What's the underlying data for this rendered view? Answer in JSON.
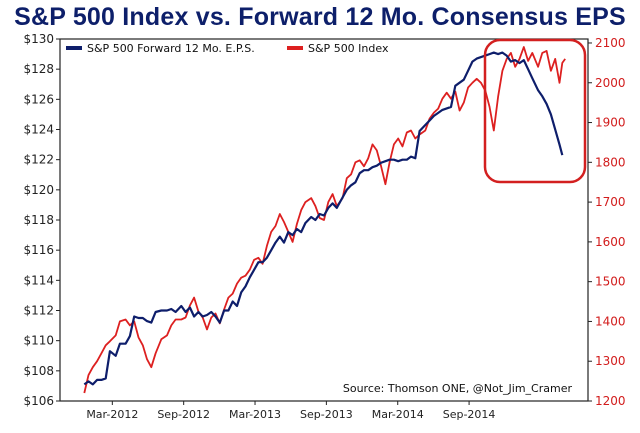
{
  "title": "S&P 500 Index vs. Forward 12 Mo. Consensus EPS",
  "chart_data": {
    "type": "line",
    "title": "S&P 500 Index vs. Forward 12 Mo. Consensus EPS",
    "source": "Source: Thomson ONE, @Not_Jim_Cramer",
    "grid": false,
    "legend_position": "top-left",
    "x_ticks": [
      "Mar-2012",
      "Sep-2012",
      "Mar-2013",
      "Sep-2013",
      "Mar-2014",
      "Sep-2014"
    ],
    "x_range": [
      2011.8,
      2015.5
    ],
    "y_left": {
      "ticks": [
        "$106",
        "$108",
        "$110",
        "$112",
        "$114",
        "$116",
        "$118",
        "$120",
        "$122",
        "$124",
        "$126",
        "$128",
        "$130"
      ],
      "range": [
        106,
        130
      ]
    },
    "y_right": {
      "ticks": [
        "1200",
        "1300",
        "1400",
        "1500",
        "1600",
        "1700",
        "1800",
        "1900",
        "2000",
        "2100"
      ],
      "range": [
        1200,
        2110
      ]
    },
    "series": [
      {
        "name": "S&P 500 Forward 12 Mo. E.P.S.",
        "axis": "left",
        "color": "#0e1e6b",
        "points": [
          [
            2011.97,
            107.1
          ],
          [
            2012.0,
            107.3
          ],
          [
            2012.03,
            107.1
          ],
          [
            2012.06,
            107.4
          ],
          [
            2012.09,
            107.4
          ],
          [
            2012.12,
            107.5
          ],
          [
            2012.15,
            109.3
          ],
          [
            2012.19,
            109.0
          ],
          [
            2012.22,
            109.8
          ],
          [
            2012.26,
            109.8
          ],
          [
            2012.29,
            110.3
          ],
          [
            2012.32,
            111.6
          ],
          [
            2012.35,
            111.5
          ],
          [
            2012.38,
            111.5
          ],
          [
            2012.41,
            111.3
          ],
          [
            2012.44,
            111.2
          ],
          [
            2012.47,
            111.9
          ],
          [
            2012.51,
            112.0
          ],
          [
            2012.55,
            112.0
          ],
          [
            2012.58,
            112.1
          ],
          [
            2012.61,
            111.9
          ],
          [
            2012.65,
            112.3
          ],
          [
            2012.68,
            111.9
          ],
          [
            2012.71,
            112.2
          ],
          [
            2012.74,
            111.6
          ],
          [
            2012.77,
            111.9
          ],
          [
            2012.8,
            111.6
          ],
          [
            2012.83,
            111.7
          ],
          [
            2012.86,
            111.9
          ],
          [
            2012.89,
            111.6
          ],
          [
            2012.92,
            111.2
          ],
          [
            2012.95,
            112.0
          ],
          [
            2012.98,
            112.0
          ],
          [
            2013.01,
            112.6
          ],
          [
            2013.04,
            112.3
          ],
          [
            2013.07,
            113.2
          ],
          [
            2013.1,
            113.6
          ],
          [
            2013.13,
            114.2
          ],
          [
            2013.16,
            114.7
          ],
          [
            2013.19,
            115.2
          ],
          [
            2013.22,
            115.2
          ],
          [
            2013.25,
            115.5
          ],
          [
            2013.28,
            116.0
          ],
          [
            2013.31,
            116.5
          ],
          [
            2013.34,
            116.9
          ],
          [
            2013.37,
            116.5
          ],
          [
            2013.4,
            117.2
          ],
          [
            2013.43,
            117.0
          ],
          [
            2013.46,
            117.4
          ],
          [
            2013.49,
            117.2
          ],
          [
            2013.52,
            117.8
          ],
          [
            2013.56,
            118.2
          ],
          [
            2013.59,
            118.0
          ],
          [
            2013.62,
            118.4
          ],
          [
            2013.65,
            118.3
          ],
          [
            2013.68,
            118.8
          ],
          [
            2013.71,
            119.1
          ],
          [
            2013.74,
            118.8
          ],
          [
            2013.78,
            119.5
          ],
          [
            2013.81,
            120.0
          ],
          [
            2013.84,
            120.3
          ],
          [
            2013.87,
            120.5
          ],
          [
            2013.9,
            121.1
          ],
          [
            2013.93,
            121.3
          ],
          [
            2013.96,
            121.3
          ],
          [
            2013.99,
            121.5
          ],
          [
            2014.02,
            121.6
          ],
          [
            2014.05,
            121.8
          ],
          [
            2014.08,
            121.9
          ],
          [
            2014.11,
            122.0
          ],
          [
            2014.14,
            122.0
          ],
          [
            2014.17,
            121.9
          ],
          [
            2014.2,
            122.0
          ],
          [
            2014.23,
            122.0
          ],
          [
            2014.26,
            122.2
          ],
          [
            2014.29,
            122.1
          ],
          [
            2014.32,
            123.9
          ],
          [
            2014.36,
            124.3
          ],
          [
            2014.39,
            124.6
          ],
          [
            2014.42,
            124.9
          ],
          [
            2014.45,
            125.1
          ],
          [
            2014.48,
            125.3
          ],
          [
            2014.51,
            125.4
          ],
          [
            2014.54,
            125.5
          ],
          [
            2014.57,
            126.9
          ],
          [
            2014.6,
            127.1
          ],
          [
            2014.63,
            127.3
          ],
          [
            2014.66,
            127.9
          ],
          [
            2014.69,
            128.5
          ],
          [
            2014.72,
            128.7
          ],
          [
            2014.75,
            128.8
          ],
          [
            2014.78,
            128.9
          ],
          [
            2014.81,
            129.0
          ],
          [
            2014.84,
            129.1
          ],
          [
            2014.87,
            129.0
          ],
          [
            2014.9,
            129.1
          ],
          [
            2014.93,
            128.9
          ],
          [
            2014.96,
            128.5
          ],
          [
            2014.99,
            128.6
          ],
          [
            2015.02,
            128.4
          ],
          [
            2015.05,
            128.6
          ],
          [
            2015.08,
            128.0
          ],
          [
            2015.11,
            127.4
          ],
          [
            2015.15,
            126.6
          ],
          [
            2015.18,
            126.2
          ],
          [
            2015.21,
            125.7
          ],
          [
            2015.24,
            125.0
          ],
          [
            2015.27,
            124.0
          ],
          [
            2015.3,
            123.0
          ],
          [
            2015.32,
            122.3
          ]
        ]
      },
      {
        "name": "S&P 500 Index",
        "axis": "right",
        "color": "#dd2020",
        "points": [
          [
            2011.97,
            1220
          ],
          [
            2012.0,
            1265
          ],
          [
            2012.03,
            1285
          ],
          [
            2012.06,
            1300
          ],
          [
            2012.09,
            1320
          ],
          [
            2012.12,
            1340
          ],
          [
            2012.15,
            1350
          ],
          [
            2012.19,
            1365
          ],
          [
            2012.22,
            1400
          ],
          [
            2012.26,
            1405
          ],
          [
            2012.29,
            1390
          ],
          [
            2012.32,
            1400
          ],
          [
            2012.35,
            1360
          ],
          [
            2012.38,
            1340
          ],
          [
            2012.41,
            1305
          ],
          [
            2012.44,
            1285
          ],
          [
            2012.47,
            1320
          ],
          [
            2012.51,
            1355
          ],
          [
            2012.55,
            1365
          ],
          [
            2012.58,
            1390
          ],
          [
            2012.61,
            1405
          ],
          [
            2012.65,
            1405
          ],
          [
            2012.68,
            1410
          ],
          [
            2012.71,
            1440
          ],
          [
            2012.74,
            1460
          ],
          [
            2012.77,
            1425
          ],
          [
            2012.8,
            1410
          ],
          [
            2012.83,
            1380
          ],
          [
            2012.86,
            1410
          ],
          [
            2012.89,
            1420
          ],
          [
            2012.92,
            1395
          ],
          [
            2012.95,
            1430
          ],
          [
            2012.98,
            1460
          ],
          [
            2013.01,
            1470
          ],
          [
            2013.04,
            1495
          ],
          [
            2013.07,
            1510
          ],
          [
            2013.1,
            1515
          ],
          [
            2013.13,
            1530
          ],
          [
            2013.16,
            1555
          ],
          [
            2013.19,
            1560
          ],
          [
            2013.22,
            1545
          ],
          [
            2013.25,
            1590
          ],
          [
            2013.28,
            1625
          ],
          [
            2013.31,
            1640
          ],
          [
            2013.34,
            1670
          ],
          [
            2013.37,
            1650
          ],
          [
            2013.4,
            1625
          ],
          [
            2013.43,
            1600
          ],
          [
            2013.46,
            1645
          ],
          [
            2013.49,
            1680
          ],
          [
            2013.52,
            1700
          ],
          [
            2013.56,
            1710
          ],
          [
            2013.59,
            1690
          ],
          [
            2013.62,
            1660
          ],
          [
            2013.65,
            1655
          ],
          [
            2013.68,
            1700
          ],
          [
            2013.71,
            1720
          ],
          [
            2013.74,
            1690
          ],
          [
            2013.78,
            1710
          ],
          [
            2013.81,
            1760
          ],
          [
            2013.84,
            1770
          ],
          [
            2013.87,
            1800
          ],
          [
            2013.9,
            1805
          ],
          [
            2013.93,
            1790
          ],
          [
            2013.96,
            1810
          ],
          [
            2013.99,
            1845
          ],
          [
            2014.02,
            1830
          ],
          [
            2014.05,
            1790
          ],
          [
            2014.08,
            1745
          ],
          [
            2014.11,
            1800
          ],
          [
            2014.14,
            1845
          ],
          [
            2014.17,
            1860
          ],
          [
            2014.2,
            1840
          ],
          [
            2014.23,
            1875
          ],
          [
            2014.26,
            1880
          ],
          [
            2014.29,
            1860
          ],
          [
            2014.32,
            1870
          ],
          [
            2014.36,
            1880
          ],
          [
            2014.39,
            1910
          ],
          [
            2014.42,
            1925
          ],
          [
            2014.45,
            1935
          ],
          [
            2014.48,
            1960
          ],
          [
            2014.51,
            1975
          ],
          [
            2014.54,
            1960
          ],
          [
            2014.57,
            1978
          ],
          [
            2014.6,
            1930
          ],
          [
            2014.63,
            1950
          ],
          [
            2014.66,
            1988
          ],
          [
            2014.69,
            2000
          ],
          [
            2014.72,
            2010
          ],
          [
            2014.75,
            2000
          ],
          [
            2014.78,
            1980
          ],
          [
            2014.81,
            1940
          ],
          [
            2014.84,
            1880
          ],
          [
            2014.87,
            1965
          ],
          [
            2014.9,
            2030
          ],
          [
            2014.93,
            2060
          ],
          [
            2014.96,
            2075
          ],
          [
            2014.99,
            2040
          ],
          [
            2015.02,
            2060
          ],
          [
            2015.05,
            2090
          ],
          [
            2015.08,
            2055
          ],
          [
            2015.11,
            2075
          ],
          [
            2015.15,
            2040
          ],
          [
            2015.18,
            2075
          ],
          [
            2015.21,
            2080
          ],
          [
            2015.24,
            2030
          ],
          [
            2015.27,
            2060
          ],
          [
            2015.3,
            2000
          ],
          [
            2015.32,
            2050
          ],
          [
            2015.34,
            2060
          ]
        ]
      }
    ]
  }
}
